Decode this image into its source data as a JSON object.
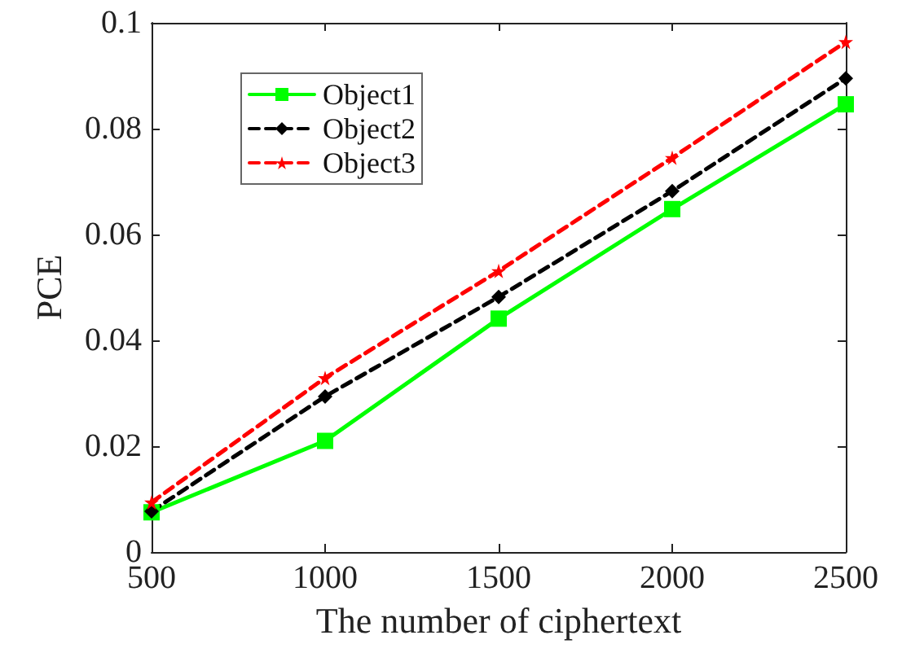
{
  "chart_data": {
    "type": "line",
    "xlabel": "The number of ciphertext",
    "ylabel": "PCE",
    "x": [
      500,
      1000,
      1500,
      2000,
      2500
    ],
    "series": [
      {
        "name": "Object1",
        "color": "#00ff00",
        "marker": "square",
        "line_style": "solid",
        "values": [
          0.0075,
          0.021,
          0.0441,
          0.0648,
          0.0846
        ]
      },
      {
        "name": "Object2",
        "color": "#000000",
        "marker": "diamond",
        "line_style": "dashed",
        "values": [
          0.0077,
          0.0294,
          0.0482,
          0.0682,
          0.0895
        ]
      },
      {
        "name": "Object3",
        "color": "#ff0000",
        "marker": "star",
        "line_style": "dashed",
        "values": [
          0.0094,
          0.0329,
          0.0531,
          0.0745,
          0.0964
        ]
      }
    ],
    "xlim": [
      500,
      2500
    ],
    "xticks": [
      500,
      1000,
      1500,
      2000,
      2500
    ],
    "ylim": [
      0,
      0.1
    ],
    "yticks": [
      0,
      0.02,
      0.04,
      0.06,
      0.08,
      0.1
    ],
    "grid": false,
    "legend": "top left"
  }
}
